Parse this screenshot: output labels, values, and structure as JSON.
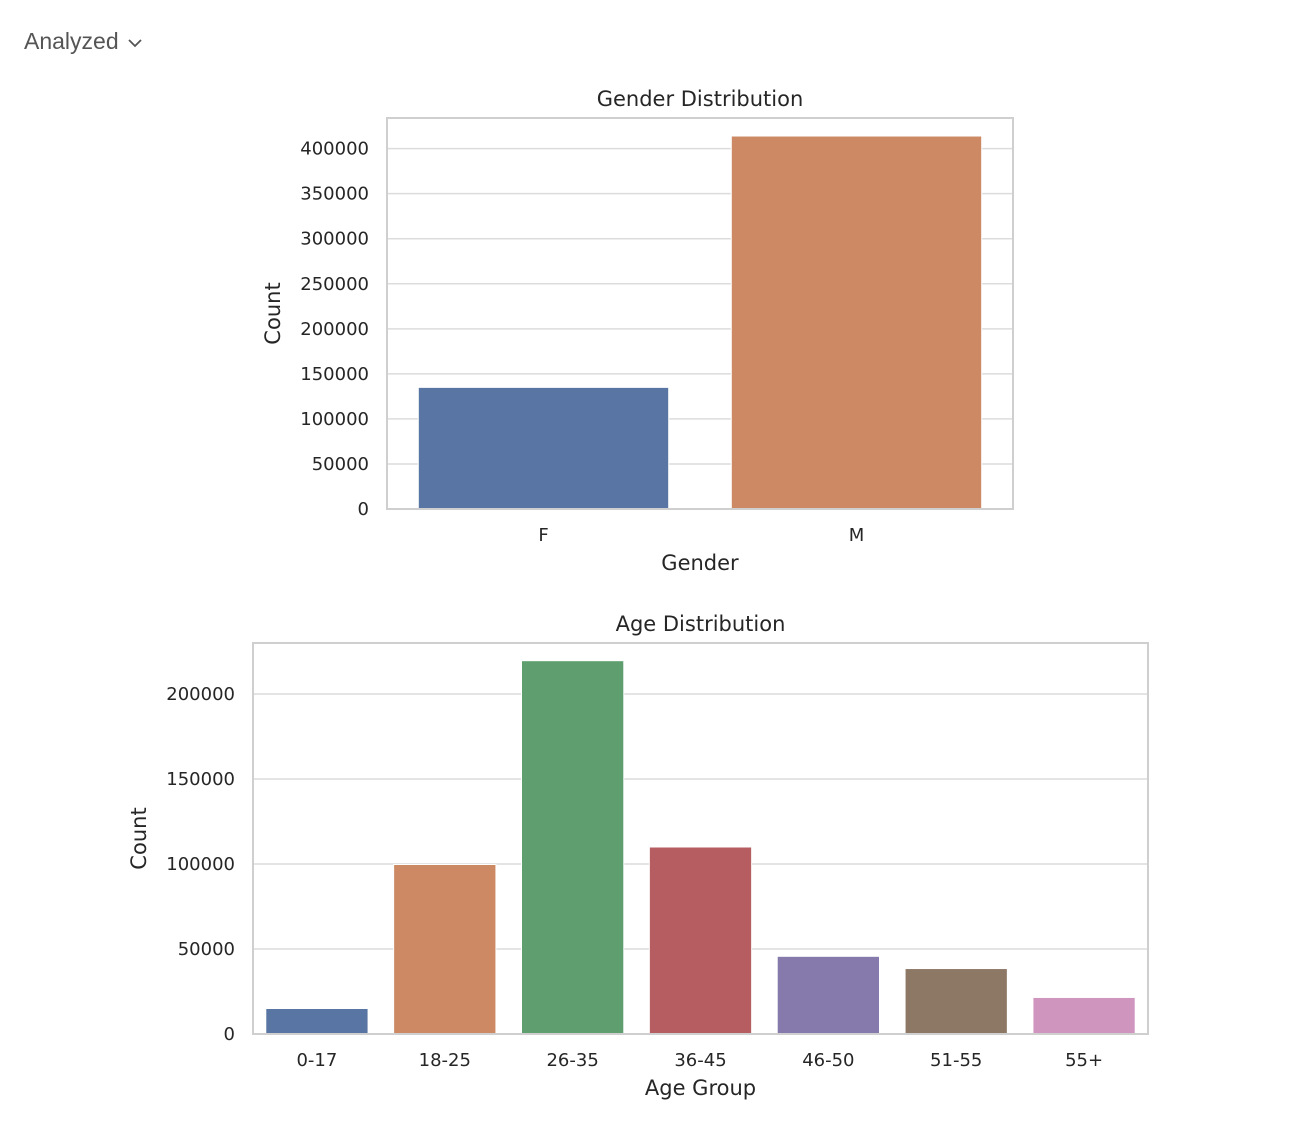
{
  "header": {
    "label": "Analyzed",
    "icon": "chevron-down-icon"
  },
  "chart_data": [
    {
      "type": "bar",
      "title": "Gender Distribution",
      "xlabel": "Gender",
      "ylabel": "Count",
      "categories": [
        "F",
        "M"
      ],
      "values": [
        135000,
        414000
      ],
      "colors": [
        "#5875a4",
        "#cc8963"
      ],
      "ylim": [
        0,
        434000
      ],
      "yticks": [
        0,
        50000,
        100000,
        150000,
        200000,
        250000,
        300000,
        350000,
        400000
      ],
      "grid": true
    },
    {
      "type": "bar",
      "title": "Age Distribution",
      "xlabel": "Age Group",
      "ylabel": "Count",
      "categories": [
        "0-17",
        "18-25",
        "26-35",
        "36-45",
        "46-50",
        "51-55",
        "55+"
      ],
      "values": [
        15000,
        99700,
        219600,
        110000,
        45700,
        38500,
        21500
      ],
      "colors": [
        "#5875a4",
        "#cc8963",
        "#5f9e6e",
        "#b55d60",
        "#857aab",
        "#8d7866",
        "#d095bf"
      ],
      "ylim": [
        0,
        230000
      ],
      "yticks": [
        0,
        50000,
        100000,
        150000,
        200000
      ],
      "grid": true
    }
  ]
}
